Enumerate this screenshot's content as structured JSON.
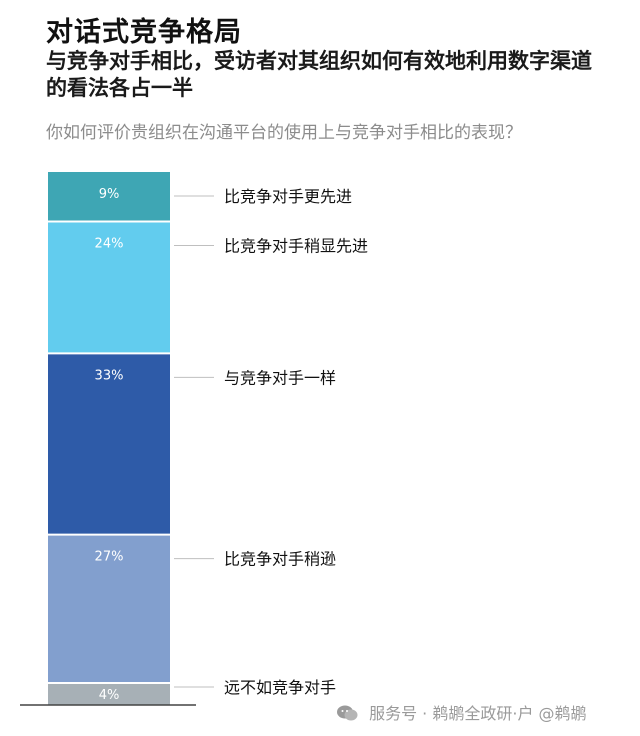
{
  "header": {
    "title": "对话式竞争格局",
    "subtitle": "与竞争对手相比，受访者对其组织如何有效地利用数字渠道的看法各占一半",
    "question": "你如何评价贵组织在沟通平台的使用上与竞争对手相比的表现？"
  },
  "chart_data": {
    "type": "bar",
    "stacked": true,
    "title": "对话式竞争格局",
    "subtitle": "与竞争对手相比，受访者对其组织如何有效地利用数字渠道的看法各占一半",
    "question": "你如何评价贵组织在沟通平台的使用上与竞争对手相比的表现？",
    "unit": "%",
    "segments": [
      {
        "name": "比竞争对手更先进",
        "value": 9,
        "label": "9%",
        "color": "#3ea6b4"
      },
      {
        "name": "比竞争对手稍显先进",
        "value": 24,
        "label": "24%",
        "color": "#62ccee"
      },
      {
        "name": "与竞争对手一样",
        "value": 33,
        "label": "33%",
        "color": "#2e5ba8"
      },
      {
        "name": "比竞争对手稍逊",
        "value": 27,
        "label": "27%",
        "color": "#829fce"
      },
      {
        "name": "远不如竞争对手",
        "value": 4,
        "label": "4%",
        "color": "#a7b0b6"
      }
    ],
    "colors": {
      "leader_line": "#bfbfbf",
      "baseline": "#444444"
    }
  },
  "watermark": {
    "icon": "wechat-icon",
    "text": "服务号 · 鹈鹕全政研·户 @鹈鹕"
  }
}
